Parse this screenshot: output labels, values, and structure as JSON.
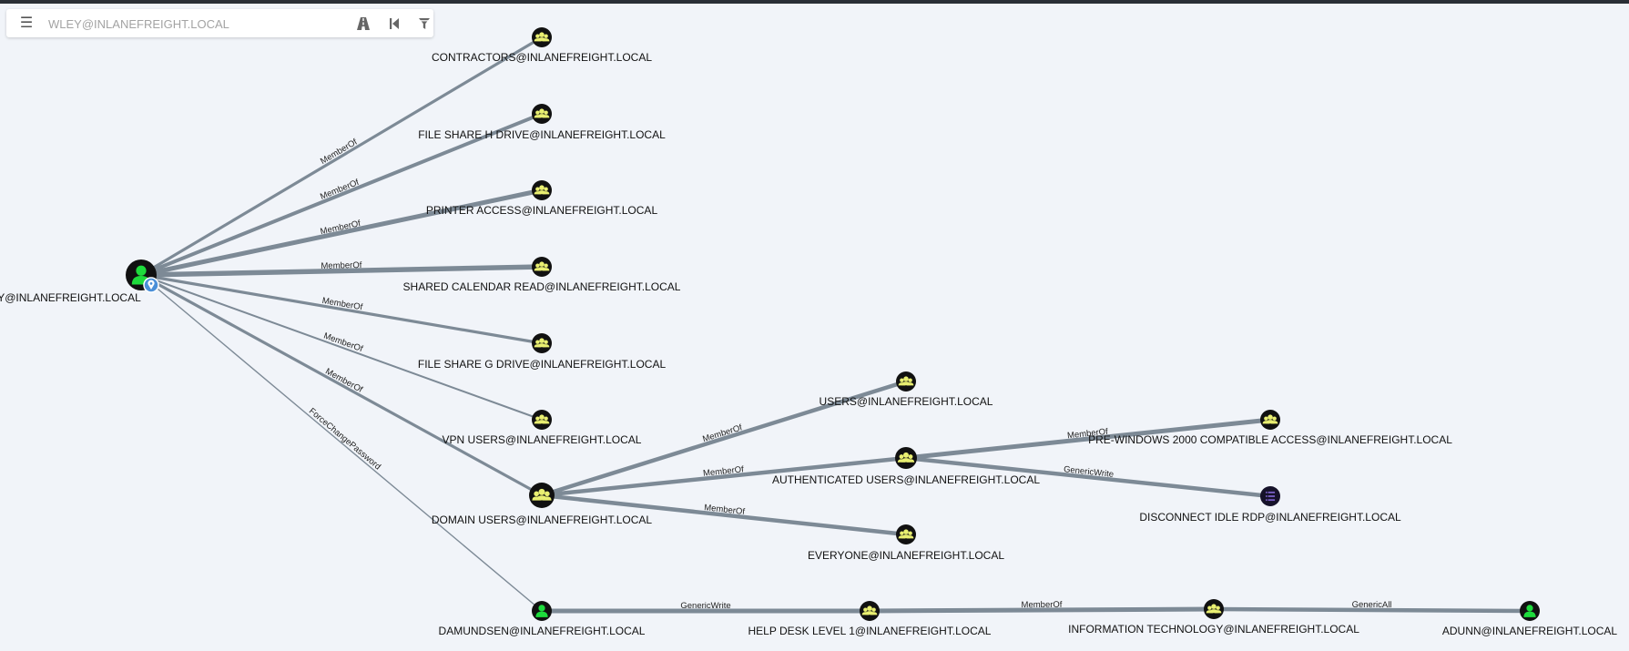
{
  "search": {
    "placeholder": "WLEY@INLANEFREIGHT.LOCAL"
  },
  "toolbar": {
    "menu_icon": "hamburger-menu-icon",
    "path_icon": "road-path-icon",
    "back_icon": "skip-back-icon",
    "filter_icon": "filter-icon"
  },
  "colors": {
    "user_green": "#1edb3c",
    "group_yellow": "#e9ef71",
    "node_dark": "#111111",
    "gpo_purple": "#7b61c9",
    "edge": "#7d8a96",
    "start_marker": "#4a8fd8"
  },
  "graph": {
    "nodes": [
      {
        "id": "wley",
        "label": "WLEY@INLANEFREIGHT.LOCAL",
        "type": "user",
        "start": true
      },
      {
        "id": "contractors",
        "label": "CONTRACTORS@INLANEFREIGHT.LOCAL",
        "type": "group"
      },
      {
        "id": "fsh",
        "label": "FILE SHARE H DRIVE@INLANEFREIGHT.LOCAL",
        "type": "group"
      },
      {
        "id": "printer",
        "label": "PRINTER ACCESS@INLANEFREIGHT.LOCAL",
        "type": "group"
      },
      {
        "id": "calendar",
        "label": "SHARED CALENDAR READ@INLANEFREIGHT.LOCAL",
        "type": "group"
      },
      {
        "id": "fsg",
        "label": "FILE SHARE G DRIVE@INLANEFREIGHT.LOCAL",
        "type": "group"
      },
      {
        "id": "vpn",
        "label": "VPN USERS@INLANEFREIGHT.LOCAL",
        "type": "group"
      },
      {
        "id": "domusers",
        "label": "DOMAIN USERS@INLANEFREIGHT.LOCAL",
        "type": "group",
        "big": true
      },
      {
        "id": "users",
        "label": "USERS@INLANEFREIGHT.LOCAL",
        "type": "group"
      },
      {
        "id": "authusers",
        "label": "AUTHENTICATED USERS@INLANEFREIGHT.LOCAL",
        "type": "group"
      },
      {
        "id": "everyone",
        "label": "EVERYONE@INLANEFREIGHT.LOCAL",
        "type": "group"
      },
      {
        "id": "prewin",
        "label": "PRE-WINDOWS 2000 COMPATIBLE ACCESS@INLANEFREIGHT.LOCAL",
        "type": "group"
      },
      {
        "id": "disconnect",
        "label": "DISCONNECT IDLE RDP@INLANEFREIGHT.LOCAL",
        "type": "gpo"
      },
      {
        "id": "damundsen",
        "label": "DAMUNDSEN@INLANEFREIGHT.LOCAL",
        "type": "user"
      },
      {
        "id": "helpdesk",
        "label": "HELP DESK LEVEL 1@INLANEFREIGHT.LOCAL",
        "type": "group"
      },
      {
        "id": "infotech",
        "label": "INFORMATION TECHNOLOGY@INLANEFREIGHT.LOCAL",
        "type": "group"
      },
      {
        "id": "adunn",
        "label": "ADUNN@INLANEFREIGHT.LOCAL",
        "type": "user"
      }
    ],
    "edges": [
      {
        "id": "e1",
        "from": "wley",
        "to": "contractors",
        "label": "MemberOf"
      },
      {
        "id": "e2",
        "from": "wley",
        "to": "fsh",
        "label": "MemberOf"
      },
      {
        "id": "e3",
        "from": "wley",
        "to": "printer",
        "label": "MemberOf"
      },
      {
        "id": "e4",
        "from": "wley",
        "to": "calendar",
        "label": "MemberOf"
      },
      {
        "id": "e5",
        "from": "wley",
        "to": "fsg",
        "label": "MemberOf"
      },
      {
        "id": "e6",
        "from": "wley",
        "to": "vpn",
        "label": "MemberOf"
      },
      {
        "id": "e7",
        "from": "wley",
        "to": "domusers",
        "label": "MemberOf"
      },
      {
        "id": "e8",
        "from": "wley",
        "to": "damundsen",
        "label": "ForceChangePassword"
      },
      {
        "id": "e9",
        "from": "domusers",
        "to": "users",
        "label": "MemberOf"
      },
      {
        "id": "e10",
        "from": "domusers",
        "to": "authusers",
        "label": "MemberOf"
      },
      {
        "id": "e11",
        "from": "domusers",
        "to": "everyone",
        "label": "MemberOf"
      },
      {
        "id": "e12",
        "from": "authusers",
        "to": "prewin",
        "label": "MemberOf"
      },
      {
        "id": "e13",
        "from": "authusers",
        "to": "disconnect",
        "label": "GenericWrite"
      },
      {
        "id": "e14",
        "from": "damundsen",
        "to": "helpdesk",
        "label": "GenericWrite"
      },
      {
        "id": "e15",
        "from": "helpdesk",
        "to": "infotech",
        "label": "MemberOf"
      },
      {
        "id": "e16",
        "from": "infotech",
        "to": "adunn",
        "label": "GenericAll"
      }
    ]
  }
}
